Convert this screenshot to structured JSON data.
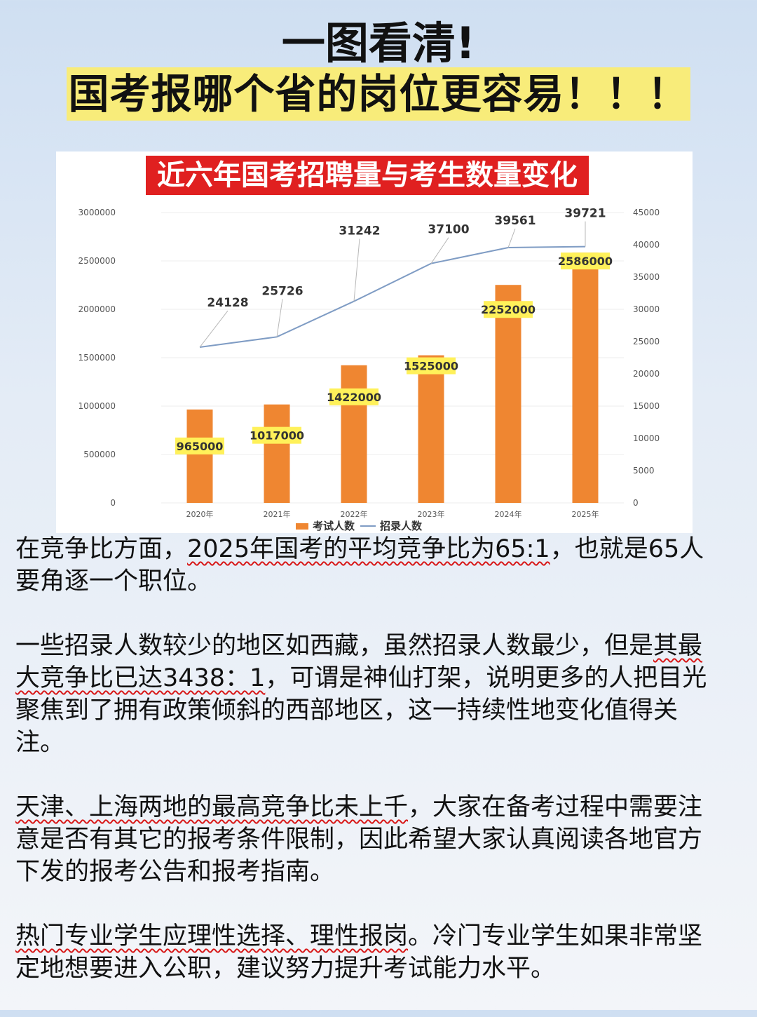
{
  "header": {
    "title": "一图看清!",
    "subtitle": "国考报哪个省的岗位更容易！！！"
  },
  "chart_data": {
    "type": "bar",
    "title": "近六年国考招聘量与考生数量变化",
    "categories": [
      "2020年",
      "2021年",
      "2022年",
      "2023年",
      "2024年",
      "2025年"
    ],
    "series": [
      {
        "name": "考试人数",
        "type": "bar",
        "axis": "left",
        "color": "#ef8631",
        "values": [
          965000,
          1017000,
          1422000,
          1525000,
          2252000,
          2586000
        ],
        "labels": [
          "965000",
          "1017000",
          "1422000",
          "1525000",
          "2252000",
          "2586000"
        ]
      },
      {
        "name": "招录人数",
        "type": "line",
        "axis": "right",
        "color": "#7f9cc4",
        "values": [
          24128,
          25726,
          31242,
          37100,
          39561,
          39721
        ],
        "labels": [
          "24128",
          "25726",
          "31242",
          "37100",
          "39561",
          "39721"
        ]
      }
    ],
    "y_left": {
      "ylim": [
        0,
        3000000
      ],
      "ticks": [
        "0",
        "500000",
        "1000000",
        "1500000",
        "2000000",
        "2500000",
        "3000000"
      ]
    },
    "y_right": {
      "ylim": [
        0,
        45000
      ],
      "ticks": [
        "0",
        "5000",
        "10000",
        "15000",
        "20000",
        "25000",
        "30000",
        "35000",
        "40000",
        "45000"
      ]
    },
    "grid": true,
    "legend": "bottom",
    "bar_label_bg": "#fff15a"
  },
  "paragraphs": [
    {
      "pre": "在竞争比方面，",
      "hl": "2025年国考的平均竞争比为65:1",
      "post": "，也就是65人要角逐一个职位。"
    },
    {
      "pre": "一些招录人数较少的地区如西藏，虽然招录人数最少，但是",
      "hl": "其最大竞争比已达3438：1",
      "post": "，可谓是神仙打架，说明更多的人把目光聚焦到了拥有政策倾斜的西部地区，这一持续性地变化值得关注。"
    },
    {
      "pre": "",
      "hl": "天津、上海两地的最高竞争比未上千",
      "post": "，大家在备考过程中需要注意是否有其它的报考条件限制，因此希望大家认真阅读各地官方下发的报考公告和报考指南。"
    },
    {
      "pre": "",
      "hl": "热门专业学生应理性选择、理性报岗",
      "post": "。冷门专业学生如果非常坚定地想要进入公职，建议努力提升考试能力水平。"
    }
  ]
}
